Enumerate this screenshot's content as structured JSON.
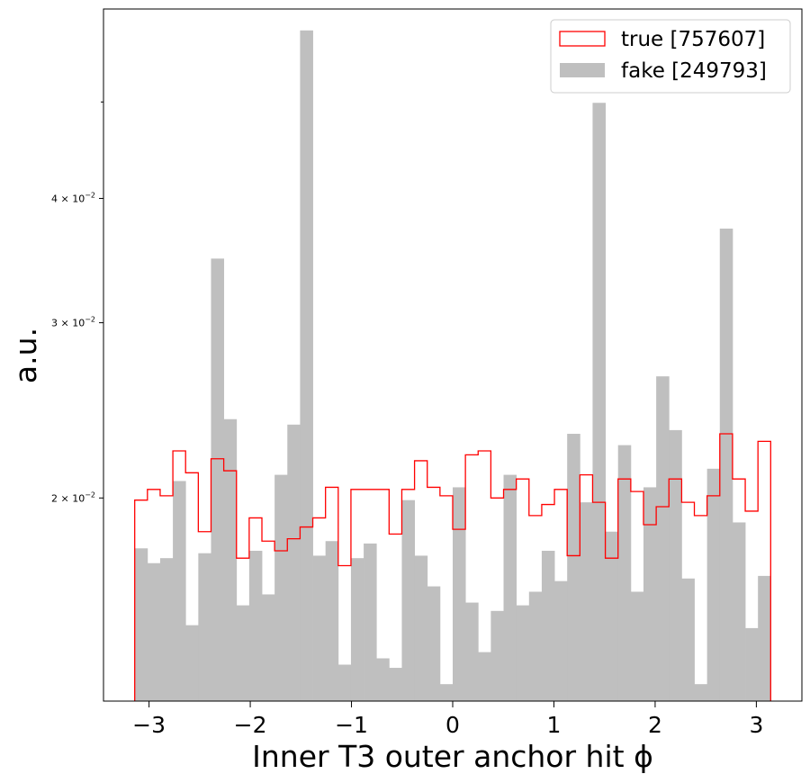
{
  "chart_data": {
    "type": "histogram",
    "xlabel": "Inner T3 outer anchor hit ϕ",
    "ylabel": "a.u.",
    "yscale": "log",
    "xlim": [
      -3.45,
      3.45
    ],
    "ylim": [
      0.0125,
      0.062
    ],
    "grid": false,
    "legend_placement": "top-right",
    "x_ticks": [
      -3,
      -2,
      -1,
      0,
      1,
      2,
      3
    ],
    "x_tick_labels": [
      "−3",
      "−2",
      "−1",
      "0",
      "1",
      "2",
      "3"
    ],
    "y_ticks": [
      0.02,
      0.03,
      0.04
    ],
    "y_tick_labels": [
      "2 × 10",
      "3 × 10",
      "4 × 10"
    ],
    "y_tick_exponent": "−2",
    "bin_range": [
      -3.14159,
      3.14159
    ],
    "n_bins": 50,
    "series": [
      {
        "name": "true [757607]",
        "style": "step",
        "color": "#ff0000",
        "values": [
          0.0199,
          0.0204,
          0.0201,
          0.0223,
          0.0212,
          0.0185,
          0.0219,
          0.0213,
          0.0174,
          0.0191,
          0.0181,
          0.0177,
          0.0182,
          0.0187,
          0.0191,
          0.0205,
          0.0171,
          0.0204,
          0.0204,
          0.0204,
          0.0184,
          0.0204,
          0.0218,
          0.0205,
          0.0201,
          0.0186,
          0.0221,
          0.0223,
          0.02,
          0.0204,
          0.0209,
          0.0192,
          0.0197,
          0.0204,
          0.0175,
          0.0211,
          0.0198,
          0.0174,
          0.0209,
          0.0203,
          0.0188,
          0.0196,
          0.0209,
          0.0198,
          0.0192,
          0.0201,
          0.0232,
          0.0209,
          0.0194,
          0.0228
        ]
      },
      {
        "name": "fake [249793]",
        "style": "bar",
        "color": "#bfbfbf",
        "values": [
          0.0178,
          0.0172,
          0.0174,
          0.0208,
          0.0149,
          0.0176,
          0.0348,
          0.024,
          0.0156,
          0.0177,
          0.016,
          0.0211,
          0.0237,
          0.059,
          0.0175,
          0.0181,
          0.0136,
          0.0174,
          0.018,
          0.0138,
          0.0135,
          0.0199,
          0.0175,
          0.0163,
          0.013,
          0.0205,
          0.0157,
          0.014,
          0.0154,
          0.0211,
          0.0156,
          0.0161,
          0.0177,
          0.0165,
          0.0232,
          0.0198,
          0.0499,
          0.0185,
          0.0226,
          0.0161,
          0.0205,
          0.0265,
          0.0234,
          0.0166,
          0.013,
          0.0214,
          0.0373,
          0.0189,
          0.0148,
          0.0167
        ]
      }
    ]
  }
}
